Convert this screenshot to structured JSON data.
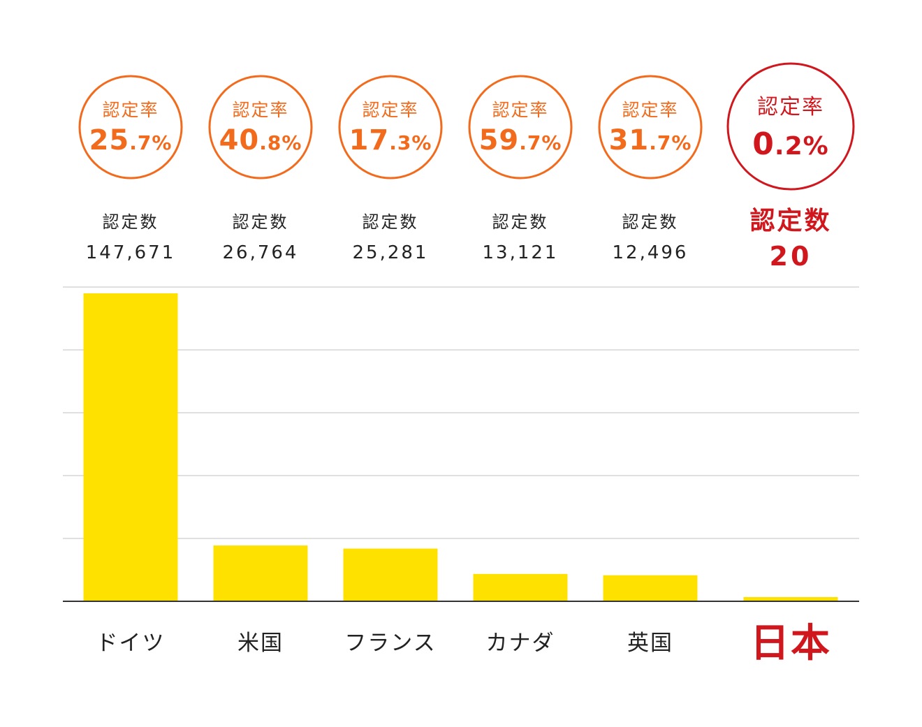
{
  "chart_data": {
    "type": "bar",
    "categories": [
      "ドイツ",
      "米国",
      "フランス",
      "カナダ",
      "英国",
      "日本"
    ],
    "values": [
      147671,
      26764,
      25281,
      13121,
      12496,
      20
    ],
    "value_labels": [
      "147,671",
      "26,764",
      "25,281",
      "13,121",
      "12,496",
      "20"
    ],
    "rates": [
      {
        "int": "25",
        "dec": ".7%"
      },
      {
        "int": "40",
        "dec": ".8%"
      },
      {
        "int": "17",
        "dec": ".3%"
      },
      {
        "int": "59",
        "dec": ".7%"
      },
      {
        "int": "31",
        "dec": ".7%"
      },
      {
        "int": "0",
        "dec": ".2%"
      }
    ],
    "rate_label": "認定率",
    "count_label": "認定数",
    "highlight_index": 5,
    "ylim": [
      0,
      150000
    ],
    "grid": true,
    "colors": {
      "bar": "#FFE100",
      "rate": "#F26B1D",
      "highlight": "#D0171D",
      "text": "#222222",
      "grid": "#d6d6d6",
      "axis": "#333333"
    }
  }
}
